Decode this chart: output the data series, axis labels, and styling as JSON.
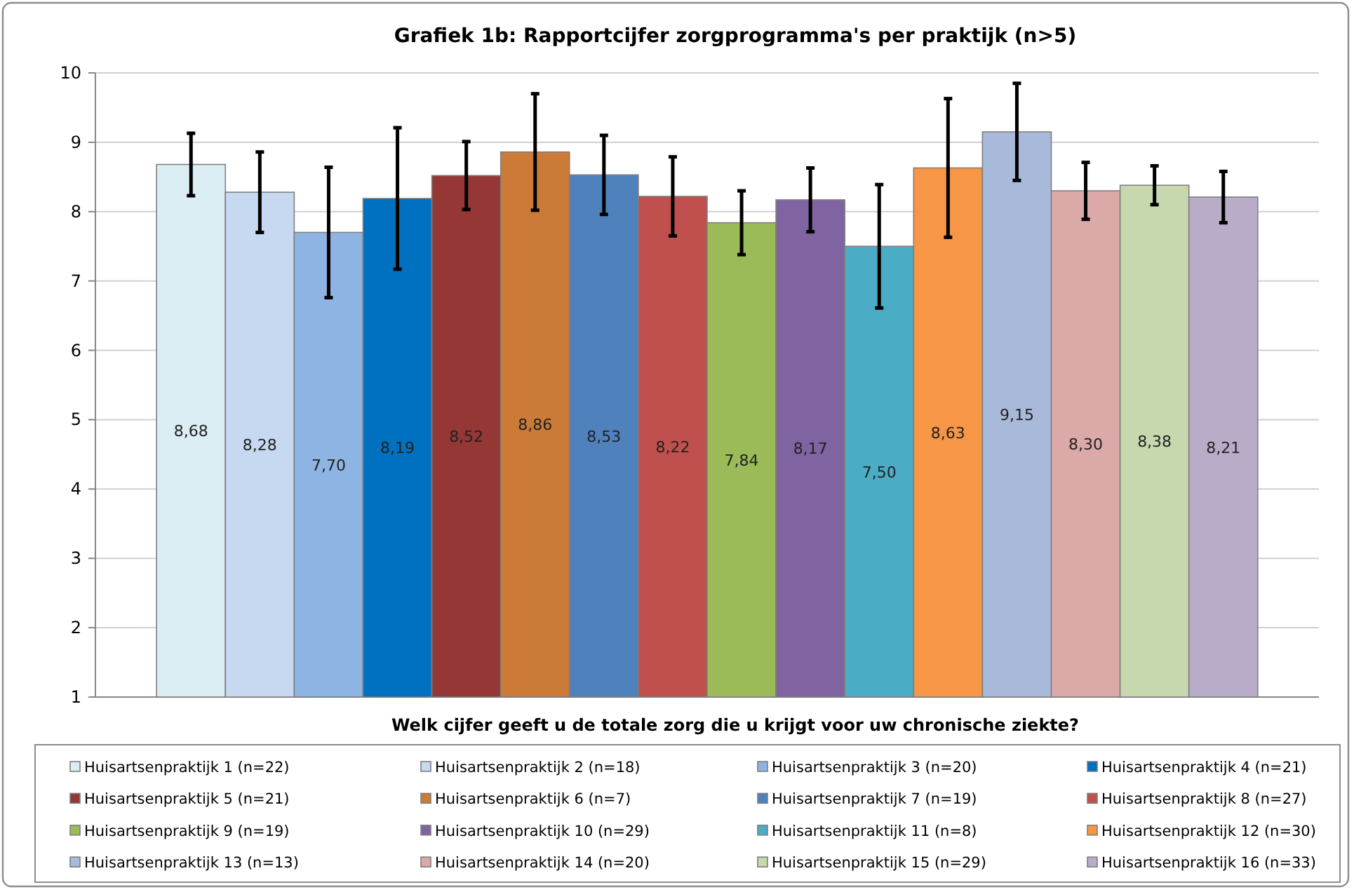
{
  "chart_data": {
    "type": "bar",
    "title": "Grafiek 1b: Rapportcijfer zorgprogramma's per praktijk (n>5)",
    "xlabel": "Welk cijfer geeft u de totale zorg die u krijgt voor uw chronische ziekte?",
    "categories": [
      null
    ],
    "ylim": [
      1,
      10
    ],
    "yticks": [
      1,
      2,
      3,
      4,
      5,
      6,
      7,
      8,
      9,
      10
    ],
    "grid": "y",
    "legend": "bottom",
    "series": [
      {
        "name": "Huisartsenpraktijk 1 (n=22)",
        "color": "#dbeef4",
        "values": [
          8.68
        ],
        "errors": [
          0.45
        ],
        "value_labels": [
          "8,68"
        ]
      },
      {
        "name": "Huisartsenpraktijk 2 (n=18)",
        "color": "#c6d9f1",
        "values": [
          8.28
        ],
        "errors": [
          0.58
        ],
        "value_labels": [
          "8,28"
        ]
      },
      {
        "name": "Huisartsenpraktijk 3 (n=20)",
        "color": "#8eb4e3",
        "values": [
          7.7
        ],
        "errors": [
          0.94
        ],
        "value_labels": [
          "7,70"
        ]
      },
      {
        "name": "Huisartsenpraktijk 4 (n=21)",
        "color": "#0070c0",
        "values": [
          8.19
        ],
        "errors": [
          1.02
        ],
        "value_labels": [
          "8,19"
        ]
      },
      {
        "name": "Huisartsenpraktijk 5 (n=21)",
        "color": "#953735",
        "values": [
          8.52
        ],
        "errors": [
          0.49
        ],
        "value_labels": [
          "8,52"
        ]
      },
      {
        "name": "Huisartsenpraktijk 6 (n=7)",
        "color": "#cc7a38",
        "values": [
          8.86
        ],
        "errors": [
          0.84
        ],
        "value_labels": [
          "8,86"
        ]
      },
      {
        "name": "Huisartsenpraktijk 7 (n=19)",
        "color": "#4f81bd",
        "values": [
          8.53
        ],
        "errors": [
          0.57
        ],
        "value_labels": [
          "8,53"
        ]
      },
      {
        "name": "Huisartsenpraktijk 8 (n=27)",
        "color": "#c0504d",
        "values": [
          8.22
        ],
        "errors": [
          0.57
        ],
        "value_labels": [
          "8,22"
        ]
      },
      {
        "name": "Huisartsenpraktijk 9 (n=19)",
        "color": "#9bbb59",
        "values": [
          7.84
        ],
        "errors": [
          0.46
        ],
        "value_labels": [
          "7,84"
        ]
      },
      {
        "name": "Huisartsenpraktijk 10 (n=29)",
        "color": "#8064a2",
        "values": [
          8.17
        ],
        "errors": [
          0.46
        ],
        "value_labels": [
          "8,17"
        ]
      },
      {
        "name": "Huisartsenpraktijk 11 (n=8)",
        "color": "#4bacc6",
        "values": [
          7.5
        ],
        "errors": [
          0.89
        ],
        "value_labels": [
          "7,50"
        ]
      },
      {
        "name": "Huisartsenpraktijk 12 (n=30)",
        "color": "#f79646",
        "values": [
          8.63
        ],
        "errors": [
          1.0
        ],
        "value_labels": [
          "8,63"
        ]
      },
      {
        "name": "Huisartsenpraktijk 13 (n=13)",
        "color": "#a9b9d9",
        "values": [
          9.15
        ],
        "errors": [
          0.7
        ],
        "value_labels": [
          "9,15"
        ]
      },
      {
        "name": "Huisartsenpraktijk 14 (n=20)",
        "color": "#dca9a9",
        "values": [
          8.3
        ],
        "errors": [
          0.41
        ],
        "value_labels": [
          "8,30"
        ]
      },
      {
        "name": "Huisartsenpraktijk 15 (n=29)",
        "color": "#c7d8ae",
        "values": [
          8.38
        ],
        "errors": [
          0.28
        ],
        "value_labels": [
          "8,38"
        ]
      },
      {
        "name": "Huisartsenpraktijk 16 (n=33)",
        "color": "#b9acc9",
        "values": [
          8.21
        ],
        "errors": [
          0.37
        ],
        "value_labels": [
          "8,21"
        ]
      }
    ]
  }
}
